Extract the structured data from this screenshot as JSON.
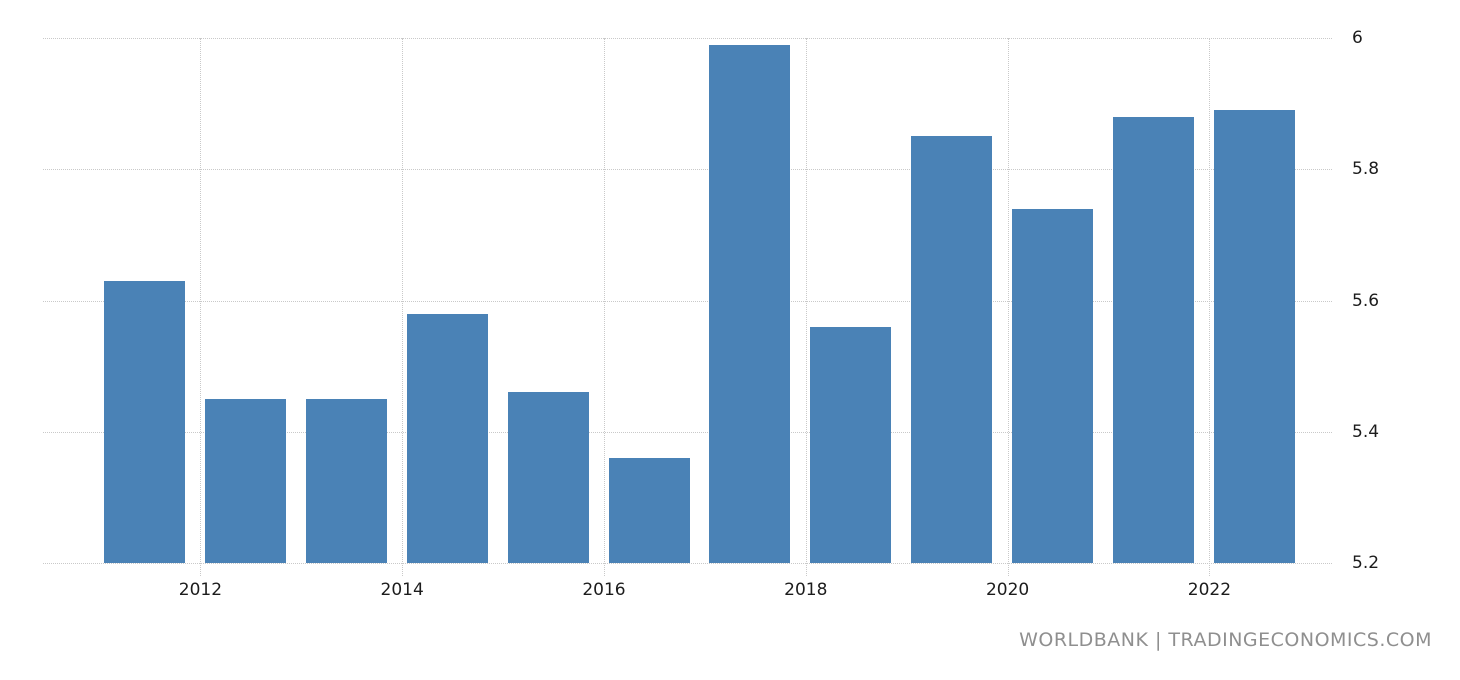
{
  "chart_data": {
    "type": "bar",
    "title": "",
    "xlabel": "",
    "ylabel": "",
    "x": [
      2011,
      2012,
      2013,
      2014,
      2015,
      2016,
      2017,
      2018,
      2019,
      2020,
      2021,
      2022
    ],
    "values": [
      5.63,
      5.45,
      5.45,
      5.58,
      5.46,
      5.36,
      5.99,
      5.56,
      5.85,
      5.74,
      5.88,
      5.89
    ],
    "ylim": [
      5.2,
      6.0
    ],
    "y_ticks": [
      6,
      5.8,
      5.6,
      5.4,
      5.2
    ],
    "y_tick_labels": [
      "6",
      "5.8",
      "5.6",
      "5.4",
      "5.2"
    ],
    "x_tick_years": [
      2012,
      2014,
      2016,
      2018,
      2020,
      2022
    ],
    "x_tick_labels": [
      "2012",
      "2014",
      "2016",
      "2018",
      "2020",
      "2022"
    ],
    "grid": "dotted",
    "legend_position": "none",
    "bar_color": "#4A82B6"
  },
  "watermark": {
    "text": "WORLDBANK | TRADINGECONOMICS.COM",
    "color": "#8F8F8F"
  },
  "colors": {
    "background": "#FFFFFF",
    "gridline": "#C9C9C9",
    "tick_text": "#1C1C1C"
  }
}
